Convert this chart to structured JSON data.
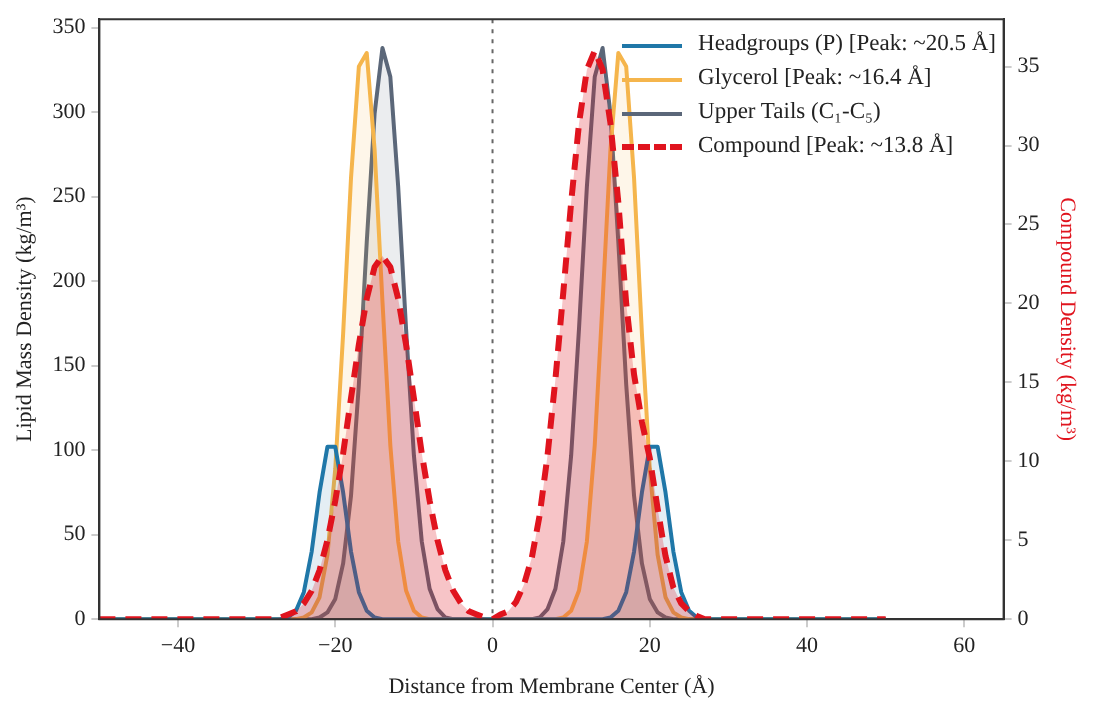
{
  "chart_data": {
    "type": "area",
    "xlabel": "Distance from Membrane Center (Å)",
    "ylabel": "Lipid Mass Density (kg/m³)",
    "y2label": "Compound Density (kg/m³)",
    "x": [
      -50,
      -30,
      -29,
      -28,
      -27,
      -26,
      -25,
      -24,
      -23,
      -22,
      -21,
      -20,
      -19,
      -18,
      -17,
      -16,
      -15,
      -14,
      -13,
      -12,
      -11,
      -10,
      -9,
      -8,
      -7,
      -6,
      -5,
      -4,
      -3,
      -2,
      -1,
      0,
      1,
      2,
      3,
      4,
      5,
      6,
      7,
      8,
      9,
      10,
      11,
      12,
      13,
      14,
      15,
      16,
      17,
      18,
      19,
      20,
      21,
      22,
      23,
      24,
      25,
      26,
      27,
      28,
      29,
      30,
      50
    ],
    "series": [
      {
        "name": "Headgroups (P) [Peak: ~20.5 Å]",
        "color": "#1f77a8",
        "values": [
          0,
          0,
          0,
          0,
          0,
          1,
          5,
          16,
          40,
          75,
          102,
          102,
          75,
          40,
          16,
          5,
          1,
          0,
          0,
          0,
          0,
          0,
          0,
          0,
          0,
          0,
          0,
          0,
          0,
          0,
          0,
          0,
          0,
          0,
          0,
          0,
          0,
          0,
          0,
          0,
          0,
          0,
          0,
          0,
          0,
          0,
          1,
          5,
          16,
          40,
          75,
          102,
          102,
          75,
          40,
          16,
          5,
          1,
          0,
          0,
          0,
          0,
          0
        ]
      },
      {
        "name": "Glycerol [Peak: ~16.4 Å]",
        "color": "#f5b54c",
        "values": [
          0,
          0,
          0,
          0,
          0,
          0,
          0,
          1,
          4,
          13,
          38,
          89,
          169,
          261,
          327,
          335,
          278,
          188,
          103,
          46,
          17,
          5,
          1,
          0,
          0,
          0,
          0,
          0,
          0,
          0,
          0,
          0,
          0,
          0,
          0,
          0,
          0,
          0,
          0,
          0,
          1,
          5,
          17,
          46,
          103,
          188,
          278,
          335,
          327,
          261,
          169,
          89,
          38,
          13,
          4,
          1,
          0,
          0,
          0,
          0,
          0,
          0,
          0
        ]
      },
      {
        "name": "Upper Tails (C₁-C₅)",
        "color": "#5b6779",
        "values": [
          0,
          0,
          0,
          0,
          0,
          0,
          0,
          0,
          0,
          1,
          4,
          12,
          33,
          73,
          139,
          223,
          299,
          338,
          321,
          256,
          172,
          97,
          46,
          18,
          6,
          1,
          0,
          0,
          0,
          0,
          0,
          0,
          0,
          0,
          0,
          0,
          0,
          1,
          6,
          18,
          46,
          97,
          172,
          256,
          321,
          338,
          299,
          223,
          139,
          73,
          33,
          12,
          4,
          1,
          0,
          0,
          0,
          0,
          0,
          0,
          0,
          0,
          0
        ]
      },
      {
        "name": "Compound [Peak: ~13.8 Å]",
        "color": "#e0141e",
        "axis": "y2",
        "line_style": "dashed",
        "values": [
          0,
          0,
          0,
          0,
          0.1,
          0.3,
          0.5,
          1,
          1.8,
          3.1,
          5,
          7.5,
          10.5,
          14,
          17.4,
          20.3,
          22.3,
          23,
          22.3,
          20.3,
          17.4,
          14,
          10.5,
          7.5,
          5,
          3.1,
          1.8,
          1,
          0.5,
          0.3,
          0.1,
          0,
          0.3,
          0.5,
          1.1,
          2.2,
          3.9,
          6.6,
          10.4,
          15.2,
          20.7,
          26.4,
          31.4,
          34.8,
          36,
          34.8,
          31.4,
          26.4,
          20,
          15.5,
          12.5,
          10.2,
          7,
          4,
          2,
          1,
          0.5,
          0.2,
          0,
          0,
          0,
          0,
          0
        ]
      }
    ],
    "xlim": [
      -50,
      65
    ],
    "xticks": [
      -40,
      -20,
      0,
      20,
      40,
      60
    ],
    "ylim": [
      0,
      355
    ],
    "yticks": [
      0,
      50,
      100,
      150,
      200,
      250,
      300,
      350
    ],
    "y2lim": [
      0,
      38
    ],
    "y2ticks": [
      0,
      5,
      10,
      15,
      20,
      25,
      30,
      35
    ],
    "ref_lines": [
      {
        "axis": "x",
        "value": 0,
        "color": "#666666",
        "line_style": "dotted"
      }
    ],
    "legend": "top right",
    "grid": false,
    "marker": "none"
  }
}
